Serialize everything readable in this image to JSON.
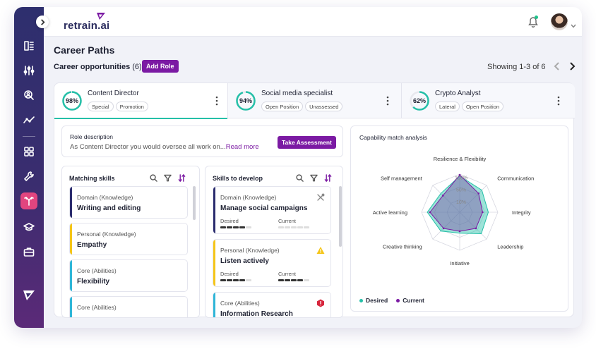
{
  "app": {
    "brand": "retrain.ai"
  },
  "colors": {
    "accent": "#7b1aa3",
    "teal": "#25c0a8",
    "sidebar_active": "#e2457f",
    "current": "#7b3fa0",
    "warning": "#f5c518",
    "danger": "#d7263d"
  },
  "sidebar": {
    "items": [
      {
        "icon": "dashboard-icon"
      },
      {
        "icon": "sliders-icon"
      },
      {
        "icon": "user-search-icon"
      },
      {
        "icon": "trend-icon"
      },
      {
        "icon": "grid-icon"
      },
      {
        "icon": "wrench-icon"
      },
      {
        "icon": "career-path-icon",
        "active": true
      },
      {
        "icon": "graduation-cap-icon"
      },
      {
        "icon": "briefcase-icon"
      }
    ],
    "logo_icon": "retrain-logo-icon"
  },
  "header": {
    "page_title": "Career Paths",
    "subtitle": "Career opportunities",
    "count": "(6)",
    "add_role_label": "Add Role",
    "showing": "Showing 1-3 of 6"
  },
  "tabs": [
    {
      "title": "Content Director",
      "percent": "98%",
      "value": 0.98,
      "tags": [
        "Special",
        "Promotion"
      ]
    },
    {
      "title": "Social media specialist",
      "percent": "94%",
      "value": 0.94,
      "tags": [
        "Open Position",
        "Unassessed"
      ]
    },
    {
      "title": "Crypto Analyst",
      "percent": "62%",
      "value": 0.62,
      "tags": [
        "Lateral",
        "Open Position"
      ]
    }
  ],
  "role": {
    "label": "Role description",
    "description": "As Content Director you would oversee all work on...",
    "read_more": "Read more",
    "assess_label": "Take Assessment"
  },
  "matching": {
    "title": "Matching skills",
    "items": [
      {
        "category": "Domain (Knowledge)",
        "name": "Writing and editing"
      },
      {
        "category": "Personal (Knowledge)",
        "name": "Empathy"
      },
      {
        "category": "Core (Abilities)",
        "name": "Flexibility"
      },
      {
        "category": "Core (Abilities)",
        "name": ""
      }
    ]
  },
  "develop": {
    "title": "Skills to develop",
    "desired_label": "Desired",
    "current_label": "Current",
    "items": [
      {
        "category": "Domain (Knowledge)",
        "name": "Manage social campaigns",
        "desired": 4,
        "current": 0,
        "status_icon": "tools-icon"
      },
      {
        "category": "Personal (Knowledge)",
        "name": "Listen actively",
        "desired": 4,
        "current": 4,
        "status_icon": "warning-icon"
      },
      {
        "category": "Core (Abilities)",
        "name": "Information Research",
        "status_icon": "alert-icon"
      }
    ]
  },
  "capability": {
    "title": "Capability match analysis",
    "axes": [
      "Resilience & Flexibility",
      "Communication",
      "Integrity",
      "Leadership",
      "Initiative",
      "Creative thinking",
      "Active learning",
      "Self management"
    ],
    "rings": [
      "100%",
      "50%",
      "10%"
    ],
    "desired": [
      0.95,
      0.82,
      0.75,
      0.8,
      0.55,
      0.7,
      0.85,
      0.7
    ],
    "current": [
      0.98,
      0.7,
      0.6,
      0.6,
      0.5,
      0.6,
      0.78,
      0.62
    ],
    "legend": {
      "desired": "Desired",
      "current": "Current"
    }
  }
}
